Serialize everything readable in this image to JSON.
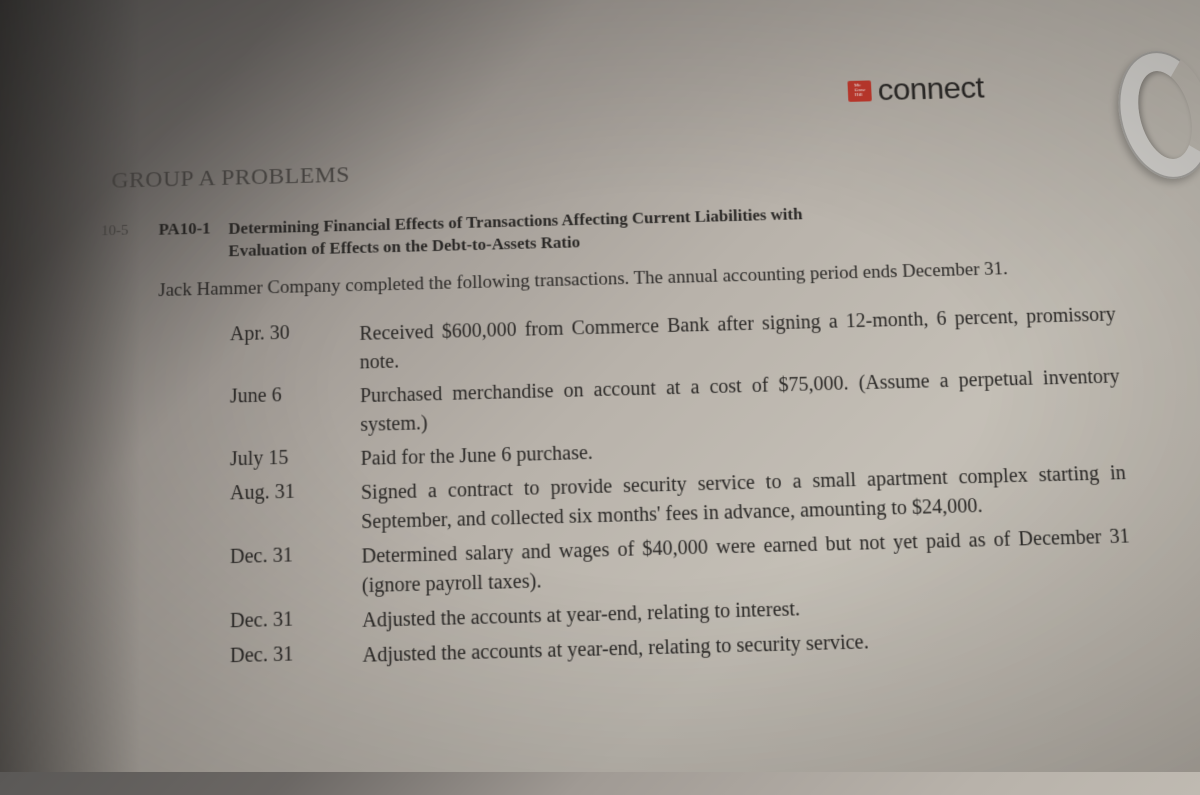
{
  "brand": {
    "text": "connect"
  },
  "section_title": "GROUP A PROBLEMS",
  "margin_ref": "10-5",
  "problem": {
    "id": "PA10-1",
    "title_line1": "Determining Financial Effects of Transactions Affecting Current Liabilities with",
    "title_line2": "Evaluation of Effects on the Debt-to-Assets Ratio"
  },
  "intro": "Jack Hammer Company completed the following transactions. The annual accounting period ends December 31.",
  "transactions": [
    {
      "date": "Apr. 30",
      "desc": "Received $600,000 from Commerce Bank after signing a 12-month, 6 percent, promissory note."
    },
    {
      "date": "June 6",
      "desc": "Purchased merchandise on account at a cost of $75,000. (Assume a perpetual inventory system.)"
    },
    {
      "date": "July 15",
      "desc": "Paid for the June 6 purchase."
    },
    {
      "date": "Aug. 31",
      "desc": "Signed a contract to provide security service to a small apartment complex starting in September, and collected six months' fees in advance, amounting to $24,000."
    },
    {
      "date": "Dec. 31",
      "desc": "Determined salary and wages of $40,000 were earned but not yet paid as of December 31 (ignore payroll taxes)."
    },
    {
      "date": "Dec. 31",
      "desc": "Adjusted the accounts at year-end, relating to interest."
    },
    {
      "date": "Dec. 31",
      "desc": "Adjusted the accounts at year-end, relating to security service."
    }
  ]
}
